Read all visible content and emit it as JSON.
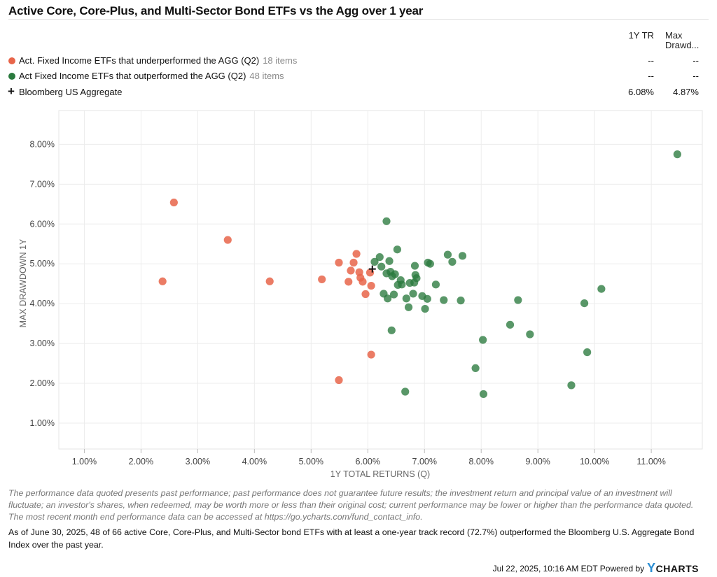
{
  "chart_data": {
    "type": "scatter",
    "title": "Active Core, Core-Plus, and Multi-Sector Bond ETFs vs the Agg over 1 year",
    "xlabel": "1Y TOTAL RETURNS (Q)",
    "ylabel": "MAX DRAWDOWN 1Y",
    "xlim": [
      0.55,
      11.9
    ],
    "ylim": [
      0.35,
      8.85
    ],
    "x_ticks": [
      1,
      2,
      3,
      4,
      5,
      6,
      7,
      8,
      9,
      10,
      11
    ],
    "y_ticks": [
      1,
      2,
      3,
      4,
      5,
      6,
      7,
      8
    ],
    "x_tick_labels": [
      "1.00%",
      "2.00%",
      "3.00%",
      "4.00%",
      "5.00%",
      "6.00%",
      "7.00%",
      "8.00%",
      "9.00%",
      "10.00%",
      "11.00%"
    ],
    "y_tick_labels": [
      "1.00%",
      "2.00%",
      "3.00%",
      "4.00%",
      "5.00%",
      "6.00%",
      "7.00%",
      "8.00%"
    ],
    "grid": true,
    "legend_position": "top",
    "series": [
      {
        "name": "Act. Fixed Income ETFs that underperformed the AGG (Q2)",
        "count_label": "18 items",
        "color": "#e8654a",
        "marker": "circle",
        "values_1y_tr": "--",
        "values_max_drawdown": "--",
        "points": [
          [
            2.38,
            4.56
          ],
          [
            2.58,
            6.54
          ],
          [
            3.53,
            5.6
          ],
          [
            4.27,
            4.56
          ],
          [
            5.19,
            4.61
          ],
          [
            5.49,
            5.03
          ],
          [
            5.49,
            2.08
          ],
          [
            5.66,
            4.55
          ],
          [
            5.7,
            4.83
          ],
          [
            5.75,
            5.03
          ],
          [
            5.8,
            5.25
          ],
          [
            5.85,
            4.79
          ],
          [
            5.87,
            4.65
          ],
          [
            5.91,
            4.55
          ],
          [
            5.96,
            4.24
          ],
          [
            6.04,
            4.78
          ],
          [
            6.06,
            4.45
          ],
          [
            6.06,
            2.72
          ]
        ]
      },
      {
        "name": "Act Fixed Income ETFs that outperformed the AGG (Q2)",
        "count_label": "48 items",
        "color": "#2a7a3e",
        "marker": "circle",
        "values_1y_tr": "--",
        "values_max_drawdown": "--",
        "points": [
          [
            6.12,
            5.05
          ],
          [
            6.21,
            5.17
          ],
          [
            6.24,
            4.93
          ],
          [
            6.28,
            4.25
          ],
          [
            6.33,
            4.76
          ],
          [
            6.33,
            6.07
          ],
          [
            6.35,
            4.13
          ],
          [
            6.38,
            5.07
          ],
          [
            6.4,
            4.8
          ],
          [
            6.42,
            3.33
          ],
          [
            6.43,
            4.69
          ],
          [
            6.46,
            4.23
          ],
          [
            6.48,
            4.74
          ],
          [
            6.52,
            5.36
          ],
          [
            6.53,
            4.47
          ],
          [
            6.58,
            4.59
          ],
          [
            6.6,
            4.48
          ],
          [
            6.66,
            1.79
          ],
          [
            6.68,
            4.13
          ],
          [
            6.72,
            3.91
          ],
          [
            6.8,
            4.25
          ],
          [
            6.82,
            4.53
          ],
          [
            6.83,
            4.95
          ],
          [
            6.84,
            4.72
          ],
          [
            6.86,
            4.64
          ],
          [
            6.96,
            4.19
          ],
          [
            7.01,
            3.87
          ],
          [
            7.05,
            4.12
          ],
          [
            7.06,
            5.03
          ],
          [
            7.1,
            5.0
          ],
          [
            7.2,
            4.48
          ],
          [
            7.34,
            4.09
          ],
          [
            7.41,
            5.23
          ],
          [
            7.49,
            5.05
          ],
          [
            7.64,
            4.08
          ],
          [
            7.67,
            5.2
          ],
          [
            7.9,
            2.38
          ],
          [
            8.03,
            3.09
          ],
          [
            8.04,
            1.73
          ],
          [
            8.51,
            3.47
          ],
          [
            8.65,
            4.09
          ],
          [
            8.86,
            3.23
          ],
          [
            9.59,
            1.95
          ],
          [
            9.82,
            4.01
          ],
          [
            9.87,
            2.78
          ],
          [
            10.12,
            4.37
          ],
          [
            11.46,
            7.75
          ],
          [
            6.74,
            4.52
          ]
        ]
      },
      {
        "name": "Bloomberg US Aggregate",
        "color": "#111111",
        "marker": "plus",
        "values_1y_tr": "6.08%",
        "values_max_drawdown": "4.87%",
        "points": [
          [
            6.08,
            4.87
          ]
        ]
      }
    ]
  },
  "legend_columns": {
    "tr": "1Y TR",
    "dd_line1": "Max",
    "dd_line2": "Drawd..."
  },
  "disclaimer": "The performance data quoted presents past performance; past performance does not guarantee future results; the investment return and principal value of an investment will fluctuate; an investor's shares, when redeemed, may be worth more or less than their original cost; current performance may be lower or higher than the performance data quoted. The most recent month end performance data can be accessed at https://go.ycharts.com/fund_contact_info.",
  "summary": "As of June 30, 2025, 48 of 66 active Core, Core-Plus, and Multi-Sector bond ETFs with at least a one-year track record (72.7%) outperformed the Bloomberg U.S. Aggregate Bond Index over the past year.",
  "footer": {
    "timestamp": "Jul 22, 2025, 10:16 AM EDT Powered by",
    "brand_y": "Y",
    "brand_rest": "CHARTS"
  }
}
